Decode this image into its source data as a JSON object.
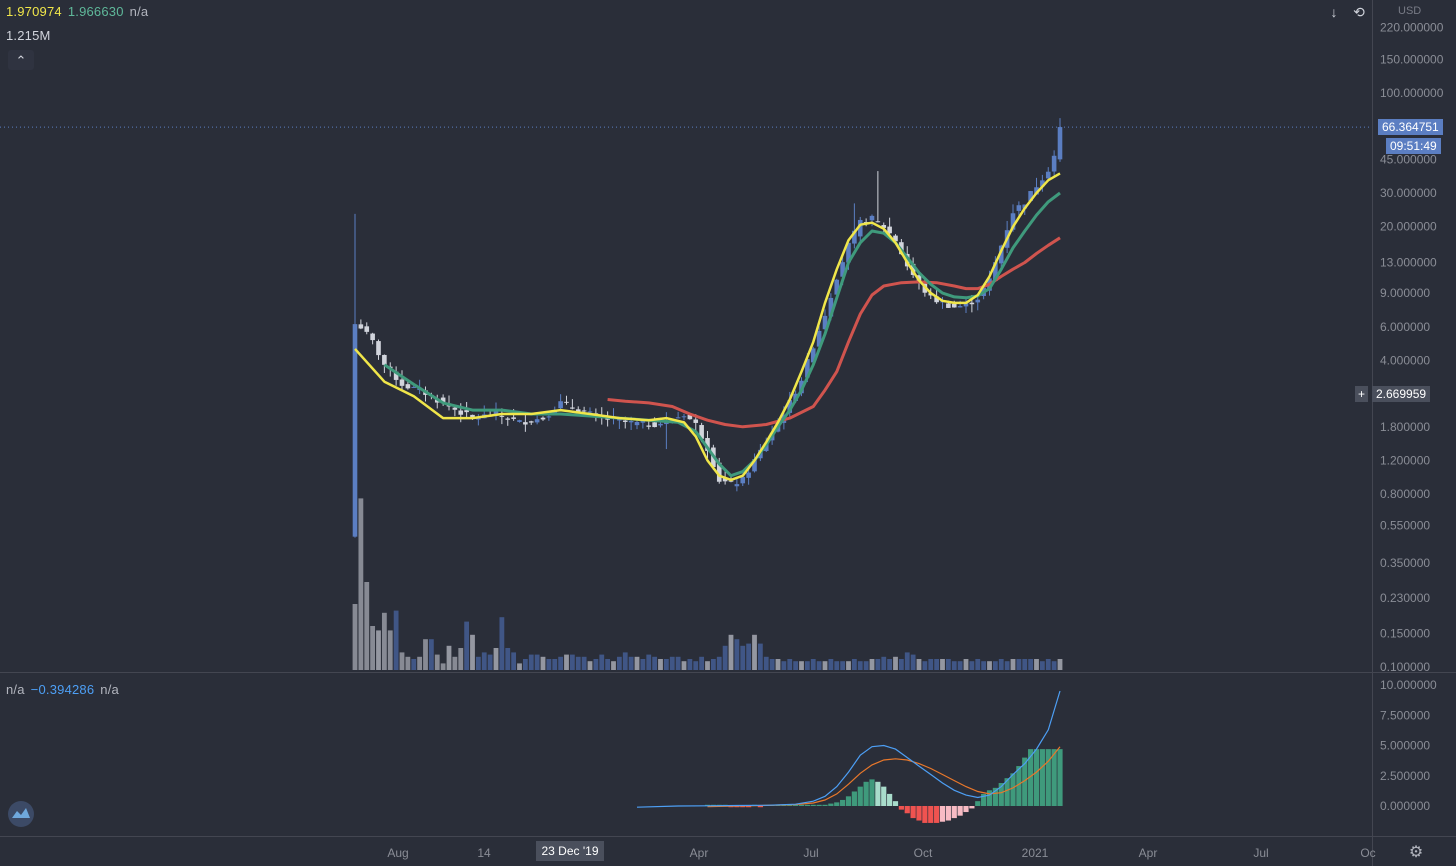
{
  "legend_main": {
    "values": [
      "1.970974",
      "1.966630",
      "n/a"
    ],
    "colors": [
      "#f0e64a",
      "#5fb89a",
      "#b2b5be"
    ]
  },
  "legend_volume": "1.215M",
  "legend_macd": {
    "values": [
      "n/a",
      "−0.394286",
      "n/a"
    ],
    "colors": [
      "#b2b5be",
      "#4d9ff5",
      "#b2b5be"
    ]
  },
  "currency": "USD",
  "last_price": "66.364751",
  "countdown": "09:51:49",
  "crosshair_price": "2.669959",
  "colors": {
    "background": "#2a2e39",
    "up": "#5b7ec2",
    "down": "#d1d4dc",
    "ema_fast": "#f0e64a",
    "ema_mid": "#3f9a7c",
    "ema_slow": "#d0544e",
    "macd": "#4d9ff5",
    "signal": "#e9782b",
    "hist_up": "#3f9a7c",
    "hist_up_light": "#a8dccb",
    "hist_down": "#ef5350",
    "hist_down_light": "#f8bbc4"
  },
  "icons": [
    "arrow-down-icon",
    "refresh-icon",
    "chevron-up-icon",
    "crosshair-plus-icon",
    "settings-gear-icon",
    "tradingview-logo-icon"
  ],
  "chart_data": [
    {
      "type": "candlestick",
      "title": "",
      "y_scale": "log",
      "y_ticks": [
        0.1,
        0.15,
        0.23,
        0.35,
        0.55,
        0.8,
        1.2,
        1.8,
        2.67,
        4.0,
        6.0,
        9.0,
        13.0,
        20.0,
        30.0,
        45.0,
        66.36,
        100.0,
        150.0,
        220.0
      ],
      "y_tick_labels": [
        "0.100000",
        "0.150000",
        "0.230000",
        "0.350000",
        "0.550000",
        "0.800000",
        "1.200000",
        "1.800000",
        "2.669959",
        "4.000000",
        "6.000000",
        "9.000000",
        "13.000000",
        "20.000000",
        "30.000000",
        "45.000000",
        "66.364751",
        "100.000000",
        "150.000000",
        "220.000000"
      ],
      "x_ticks": [
        "Aug",
        "14",
        "23 Dec '19",
        "Apr",
        "Jul",
        "Oct",
        "2021",
        "Apr",
        "Jul",
        "Oc"
      ],
      "close_anchors": [
        [
          0,
          6.2
        ],
        [
          1,
          6.0
        ],
        [
          3,
          5.0
        ],
        [
          5,
          3.8
        ],
        [
          8,
          3.0
        ],
        [
          12,
          2.7
        ],
        [
          16,
          2.3
        ],
        [
          20,
          2.0
        ],
        [
          24,
          2.1
        ],
        [
          28,
          1.9
        ],
        [
          32,
          2.0
        ],
        [
          35,
          2.4
        ],
        [
          38,
          2.2
        ],
        [
          42,
          2.0
        ],
        [
          46,
          1.9
        ],
        [
          50,
          1.85
        ],
        [
          53,
          1.9
        ],
        [
          56,
          2.1
        ],
        [
          58,
          1.85
        ],
        [
          60,
          1.4
        ],
        [
          62,
          0.95
        ],
        [
          64,
          0.9
        ],
        [
          66,
          0.95
        ],
        [
          68,
          1.2
        ],
        [
          70,
          1.5
        ],
        [
          72,
          1.9
        ],
        [
          74,
          2.4
        ],
        [
          76,
          3.2
        ],
        [
          78,
          4.8
        ],
        [
          80,
          7.0
        ],
        [
          82,
          11.0
        ],
        [
          84,
          16.0
        ],
        [
          86,
          21.0
        ],
        [
          88,
          22.0
        ],
        [
          90,
          20.0
        ],
        [
          92,
          17.0
        ],
        [
          94,
          12.5
        ],
        [
          96,
          10.0
        ],
        [
          98,
          8.5
        ],
        [
          100,
          8.0
        ],
        [
          102,
          7.6
        ],
        [
          104,
          7.8
        ],
        [
          106,
          8.5
        ],
        [
          108,
          10.5
        ],
        [
          110,
          16.0
        ],
        [
          112,
          24.0
        ],
        [
          114,
          27.0
        ],
        [
          116,
          33.0
        ],
        [
          118,
          40.0
        ],
        [
          119,
          47.0
        ],
        [
          120,
          66.36
        ]
      ],
      "ema_fast": [
        [
          0,
          4.6
        ],
        [
          5,
          3.1
        ],
        [
          10,
          2.6
        ],
        [
          15,
          2.0
        ],
        [
          20,
          2.0
        ],
        [
          25,
          2.1
        ],
        [
          30,
          2.1
        ],
        [
          35,
          2.2
        ],
        [
          40,
          2.1
        ],
        [
          45,
          2.0
        ],
        [
          50,
          1.95
        ],
        [
          53,
          2.0
        ],
        [
          56,
          1.9
        ],
        [
          58,
          1.6
        ],
        [
          60,
          1.2
        ],
        [
          62,
          1.0
        ],
        [
          64,
          0.95
        ],
        [
          66,
          1.0
        ],
        [
          68,
          1.2
        ],
        [
          70,
          1.5
        ],
        [
          72,
          1.9
        ],
        [
          74,
          2.5
        ],
        [
          76,
          3.5
        ],
        [
          78,
          5.0
        ],
        [
          80,
          8.0
        ],
        [
          82,
          12.0
        ],
        [
          84,
          17.0
        ],
        [
          86,
          20.5
        ],
        [
          88,
          21.0
        ],
        [
          90,
          19.5
        ],
        [
          92,
          16.5
        ],
        [
          94,
          13.0
        ],
        [
          96,
          10.5
        ],
        [
          98,
          9.0
        ],
        [
          100,
          8.2
        ],
        [
          102,
          8.0
        ],
        [
          104,
          8.0
        ],
        [
          106,
          8.8
        ],
        [
          108,
          11.0
        ],
        [
          110,
          15.0
        ],
        [
          112,
          20.0
        ],
        [
          114,
          25.0
        ],
        [
          116,
          30.0
        ],
        [
          118,
          35.0
        ],
        [
          120,
          38.0
        ]
      ],
      "ema_mid": [
        [
          5,
          3.8
        ],
        [
          10,
          3.0
        ],
        [
          15,
          2.4
        ],
        [
          20,
          2.2
        ],
        [
          25,
          2.2
        ],
        [
          30,
          2.1
        ],
        [
          35,
          2.1
        ],
        [
          40,
          2.05
        ],
        [
          45,
          2.0
        ],
        [
          50,
          1.95
        ],
        [
          55,
          1.9
        ],
        [
          58,
          1.7
        ],
        [
          60,
          1.4
        ],
        [
          62,
          1.15
        ],
        [
          64,
          1.0
        ],
        [
          66,
          1.05
        ],
        [
          68,
          1.2
        ],
        [
          70,
          1.45
        ],
        [
          72,
          1.8
        ],
        [
          74,
          2.2
        ],
        [
          76,
          2.8
        ],
        [
          78,
          3.8
        ],
        [
          80,
          5.5
        ],
        [
          82,
          8.5
        ],
        [
          84,
          13.0
        ],
        [
          86,
          16.5
        ],
        [
          88,
          19.0
        ],
        [
          90,
          18.5
        ],
        [
          92,
          16.5
        ],
        [
          94,
          13.8
        ],
        [
          96,
          11.5
        ],
        [
          98,
          10.0
        ],
        [
          100,
          9.0
        ],
        [
          102,
          8.6
        ],
        [
          104,
          8.5
        ],
        [
          106,
          8.7
        ],
        [
          108,
          9.5
        ],
        [
          110,
          12.0
        ],
        [
          112,
          15.5
        ],
        [
          114,
          19.0
        ],
        [
          116,
          23.0
        ],
        [
          118,
          27.0
        ],
        [
          120,
          30.0
        ]
      ],
      "ema_slow": [
        [
          43,
          2.5
        ],
        [
          46,
          2.45
        ],
        [
          50,
          2.4
        ],
        [
          54,
          2.3
        ],
        [
          57,
          2.1
        ],
        [
          60,
          1.95
        ],
        [
          63,
          1.85
        ],
        [
          66,
          1.8
        ],
        [
          70,
          1.85
        ],
        [
          74,
          2.0
        ],
        [
          78,
          2.3
        ],
        [
          80,
          2.8
        ],
        [
          82,
          3.5
        ],
        [
          84,
          5.0
        ],
        [
          86,
          7.0
        ],
        [
          88,
          8.8
        ],
        [
          90,
          9.8
        ],
        [
          93,
          10.2
        ],
        [
          96,
          10.3
        ],
        [
          99,
          10.2
        ],
        [
          102,
          9.8
        ],
        [
          104,
          9.5
        ],
        [
          106,
          9.5
        ],
        [
          108,
          10.0
        ],
        [
          110,
          11.0
        ],
        [
          112,
          12.0
        ],
        [
          114,
          13.0
        ],
        [
          116,
          14.5
        ],
        [
          118,
          16.0
        ],
        [
          120,
          17.5
        ]
      ]
    },
    {
      "type": "bar",
      "series_name": "Volume",
      "values": [
        0.3,
        0.78,
        0.4,
        0.2,
        0.18,
        0.26,
        0.18,
        0.27,
        0.08,
        0.06,
        0.05,
        0.06,
        0.14,
        0.14,
        0.07,
        0.03,
        0.11,
        0.06,
        0.1,
        0.22,
        0.16,
        0.06,
        0.08,
        0.07,
        0.1,
        0.24,
        0.1,
        0.08,
        0.03,
        0.05,
        0.07,
        0.07,
        0.06,
        0.05,
        0.05,
        0.06,
        0.07,
        0.07,
        0.06,
        0.06,
        0.04,
        0.05,
        0.07,
        0.05,
        0.04,
        0.06,
        0.08,
        0.06,
        0.06,
        0.05,
        0.07,
        0.06,
        0.05,
        0.05,
        0.06,
        0.06,
        0.04,
        0.05,
        0.04,
        0.06,
        0.04,
        0.05,
        0.06,
        0.11,
        0.16,
        0.14,
        0.11,
        0.12,
        0.16,
        0.12,
        0.06,
        0.05,
        0.05,
        0.04,
        0.05,
        0.04,
        0.04,
        0.04,
        0.05,
        0.04,
        0.04,
        0.05,
        0.04,
        0.04,
        0.04,
        0.05,
        0.04,
        0.04,
        0.05,
        0.05,
        0.06,
        0.05,
        0.06,
        0.05,
        0.08,
        0.07,
        0.05,
        0.04,
        0.05,
        0.05,
        0.05,
        0.05,
        0.04,
        0.04,
        0.05,
        0.04,
        0.05,
        0.04,
        0.04,
        0.04,
        0.05,
        0.04,
        0.05,
        0.05,
        0.05,
        0.05,
        0.05,
        0.04,
        0.05,
        0.04,
        0.05
      ]
    },
    {
      "type": "line",
      "title": "",
      "y_ticks": [
        0,
        2.5,
        5,
        7.5,
        10
      ],
      "y_tick_labels": [
        "0.000000",
        "2.500000",
        "5.000000",
        "7.500000",
        "10.000000"
      ],
      "macd": [
        [
          48,
          -0.1
        ],
        [
          55,
          0.0
        ],
        [
          60,
          0.02
        ],
        [
          65,
          0.04
        ],
        [
          70,
          0.06
        ],
        [
          75,
          0.15
        ],
        [
          78,
          0.4
        ],
        [
          80,
          0.8
        ],
        [
          82,
          1.6
        ],
        [
          84,
          2.8
        ],
        [
          86,
          4.2
        ],
        [
          88,
          4.9
        ],
        [
          90,
          5.0
        ],
        [
          92,
          4.7
        ],
        [
          94,
          4.0
        ],
        [
          96,
          3.3
        ],
        [
          98,
          2.6
        ],
        [
          100,
          1.9
        ],
        [
          102,
          1.3
        ],
        [
          104,
          0.9
        ],
        [
          106,
          0.7
        ],
        [
          108,
          0.9
        ],
        [
          110,
          1.6
        ],
        [
          112,
          2.6
        ],
        [
          114,
          3.5
        ],
        [
          116,
          4.7
        ],
        [
          118,
          6.3
        ],
        [
          120,
          9.5
        ]
      ],
      "signal": [
        [
          60,
          -0.05
        ],
        [
          65,
          0.0
        ],
        [
          70,
          0.05
        ],
        [
          75,
          0.12
        ],
        [
          78,
          0.25
        ],
        [
          80,
          0.5
        ],
        [
          82,
          1.0
        ],
        [
          84,
          1.8
        ],
        [
          86,
          2.7
        ],
        [
          88,
          3.4
        ],
        [
          90,
          3.8
        ],
        [
          92,
          3.9
        ],
        [
          94,
          3.8
        ],
        [
          96,
          3.5
        ],
        [
          98,
          3.1
        ],
        [
          100,
          2.6
        ],
        [
          102,
          2.1
        ],
        [
          104,
          1.6
        ],
        [
          106,
          1.2
        ],
        [
          108,
          1.0
        ],
        [
          110,
          1.1
        ],
        [
          112,
          1.5
        ],
        [
          114,
          2.1
        ],
        [
          116,
          2.8
        ],
        [
          118,
          3.7
        ],
        [
          120,
          4.9
        ]
      ],
      "histogram_x_start": 60,
      "histogram": [
        0.1,
        0.1,
        0.1,
        0.1,
        -0.1,
        -0.1,
        -0.1,
        -0.1,
        0.1,
        -0.1,
        0.1,
        0.1,
        0.1,
        0.1,
        0.1,
        0.1,
        0.1,
        0.1,
        0.1,
        0.1,
        0.1,
        0.2,
        0.3,
        0.5,
        0.8,
        1.2,
        1.6,
        2.0,
        2.2,
        2.0,
        1.6,
        1.0,
        0.4,
        -0.3,
        -0.6,
        -1.0,
        -1.2,
        -1.4,
        -1.4,
        -1.4,
        -1.3,
        -1.2,
        -1.0,
        -0.8,
        -0.5,
        -0.2,
        0.4,
        1.0,
        1.3,
        1.5,
        1.9,
        2.3,
        2.7,
        3.3,
        4.0,
        4.7,
        4.7,
        4.7,
        4.7,
        4.7,
        4.7
      ]
    }
  ]
}
